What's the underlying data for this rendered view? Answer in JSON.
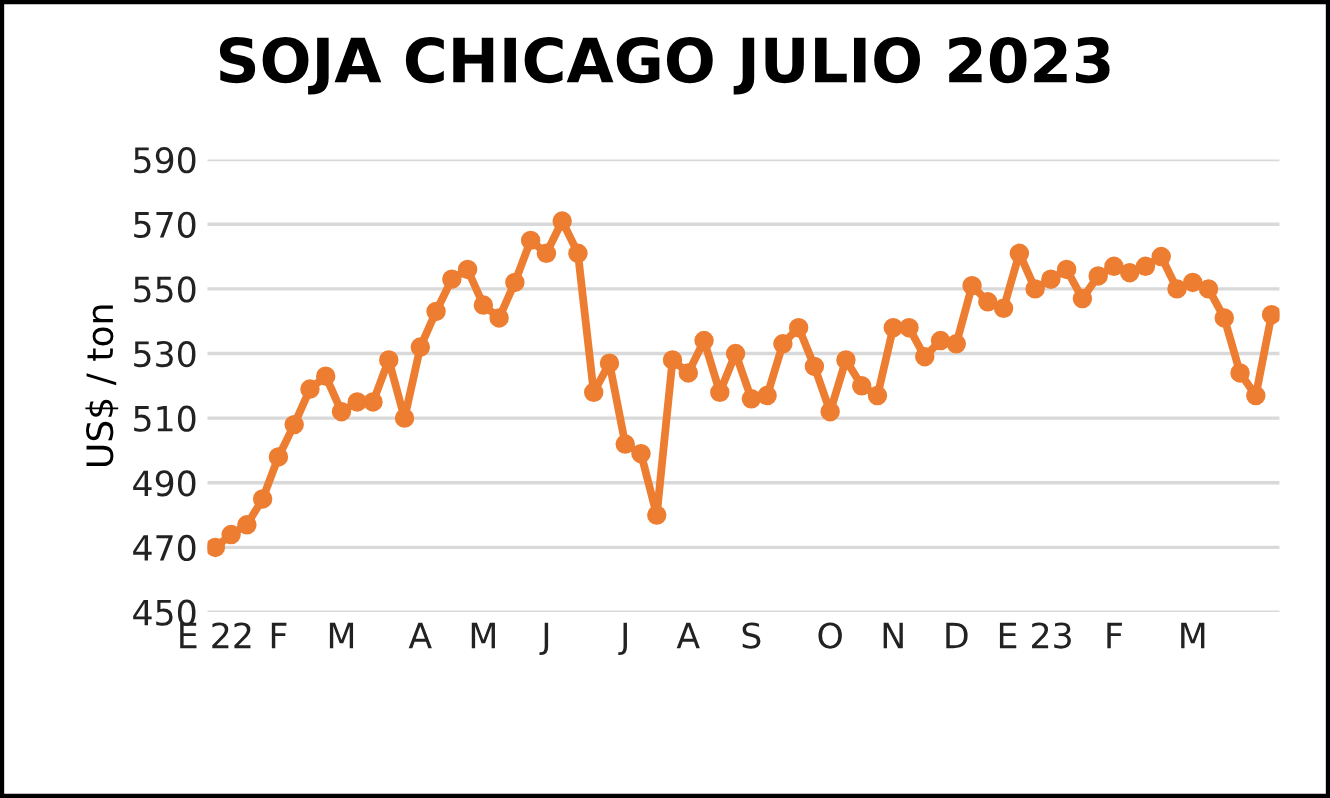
{
  "chart_data": {
    "type": "line",
    "title": "SOJA CHICAGO JULIO 2023",
    "ylabel": "US$ / ton",
    "categories": [
      "E 22",
      null,
      null,
      null,
      "F",
      null,
      null,
      null,
      "M",
      null,
      null,
      null,
      null,
      "A",
      null,
      null,
      null,
      "M",
      null,
      null,
      null,
      "J",
      null,
      null,
      null,
      null,
      "J",
      null,
      null,
      null,
      "A",
      null,
      null,
      null,
      "S",
      null,
      null,
      null,
      null,
      "O",
      null,
      null,
      null,
      "N",
      null,
      null,
      null,
      "D",
      null,
      null,
      null,
      null,
      "E 23",
      null,
      null,
      null,
      null,
      "F",
      null,
      null,
      null,
      null,
      "M",
      null,
      null,
      null,
      null,
      null
    ],
    "series": [
      {
        "color": "#ed7d31",
        "values": [
          470,
          474,
          477,
          485,
          498,
          508,
          519,
          523,
          512,
          515,
          515,
          528,
          510,
          532,
          543,
          553,
          556,
          545,
          541,
          552,
          565,
          561,
          571,
          561,
          518,
          527,
          502,
          499,
          480,
          528,
          524,
          534,
          518,
          530,
          516,
          517,
          533,
          538,
          526,
          512,
          528,
          520,
          517,
          538,
          538,
          529,
          534,
          533,
          551,
          546,
          544,
          561,
          550,
          553,
          556,
          547,
          554,
          557,
          555,
          557,
          560,
          550,
          552,
          550,
          541,
          524,
          517,
          542
        ]
      }
    ],
    "ylim": [
      450,
      590
    ],
    "yticks": [
      450,
      470,
      490,
      510,
      530,
      550,
      570,
      590
    ],
    "grid": "y",
    "marker": "circle",
    "line_style": "solid",
    "legend": false
  }
}
